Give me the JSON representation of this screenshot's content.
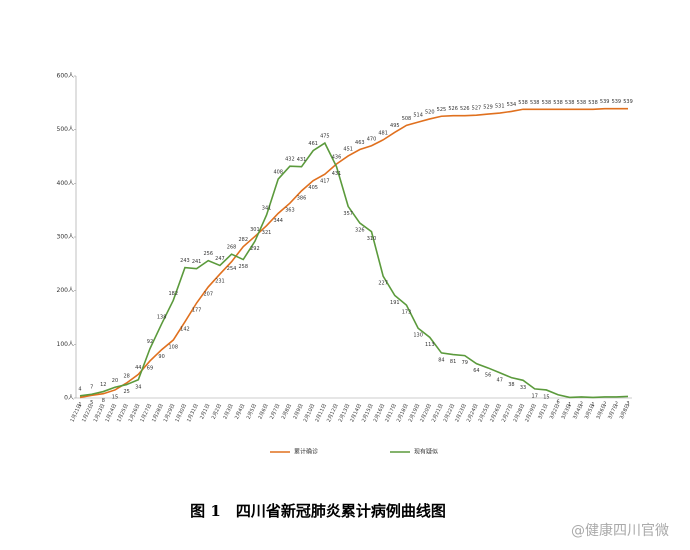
{
  "chart_data": {
    "type": "line",
    "categories": [
      "1月21日",
      "1月22日",
      "1月23日",
      "1月24日",
      "1月25日",
      "1月26日",
      "1月27日",
      "1月28日",
      "1月29日",
      "1月30日",
      "1月31日",
      "2月1日",
      "2月2日",
      "2月3日",
      "2月4日",
      "2月5日",
      "2月6日",
      "2月7日",
      "2月8日",
      "2月9日",
      "2月10日",
      "2月11日",
      "2月12日",
      "2月13日",
      "2月14日",
      "2月15日",
      "2月16日",
      "2月17日",
      "2月18日",
      "2月19日",
      "2月20日",
      "2月21日",
      "2月22日",
      "2月23日",
      "2月24日",
      "2月25日",
      "2月26日",
      "2月27日",
      "2月28日",
      "2月29日",
      "3月1日",
      "3月2日",
      "3月3日",
      "3月4日",
      "3月5日",
      "3月6日",
      "3月7日",
      "3月8日"
    ],
    "series": [
      {
        "name": "累计确诊",
        "color": "#e0701e",
        "values": [
          1,
          5,
          8,
          15,
          28,
          44,
          69,
          90,
          108,
          142,
          177,
          207,
          231,
          254,
          282,
          301,
          321,
          344,
          363,
          386,
          405,
          417,
          436,
          451,
          463,
          470,
          481,
          495,
          508,
          514,
          520,
          525,
          526,
          526,
          527,
          529,
          531,
          534,
          538,
          538,
          538,
          538,
          538,
          538,
          538,
          539,
          539,
          539
        ]
      },
      {
        "name": "现有疑似",
        "color": "#5b9a3c",
        "values": [
          4,
          7,
          12,
          20,
          25,
          34,
          92,
          138,
          182,
          243,
          241,
          256,
          247,
          268,
          258,
          292,
          341,
          408,
          432,
          431,
          461,
          475,
          431,
          357,
          326,
          310,
          227,
          191,
          173,
          130,
          113,
          84,
          81,
          79,
          64,
          56,
          47,
          38,
          33,
          17,
          15,
          6,
          1,
          2,
          1,
          2,
          2,
          3
        ]
      }
    ],
    "ylim": [
      0,
      600
    ],
    "yticks": [
      {
        "value": 0,
        "label": "0人"
      },
      {
        "value": 100,
        "label": "100人"
      },
      {
        "value": 200,
        "label": "200人"
      },
      {
        "value": 300,
        "label": "300人"
      },
      {
        "value": 400,
        "label": "400人"
      },
      {
        "value": 500,
        "label": "500人"
      },
      {
        "value": 600,
        "label": "600人"
      }
    ],
    "legend": "bottom",
    "caption": "图 1　四川省新冠肺炎累计病例曲线图",
    "watermark": "@健康四川官微"
  }
}
